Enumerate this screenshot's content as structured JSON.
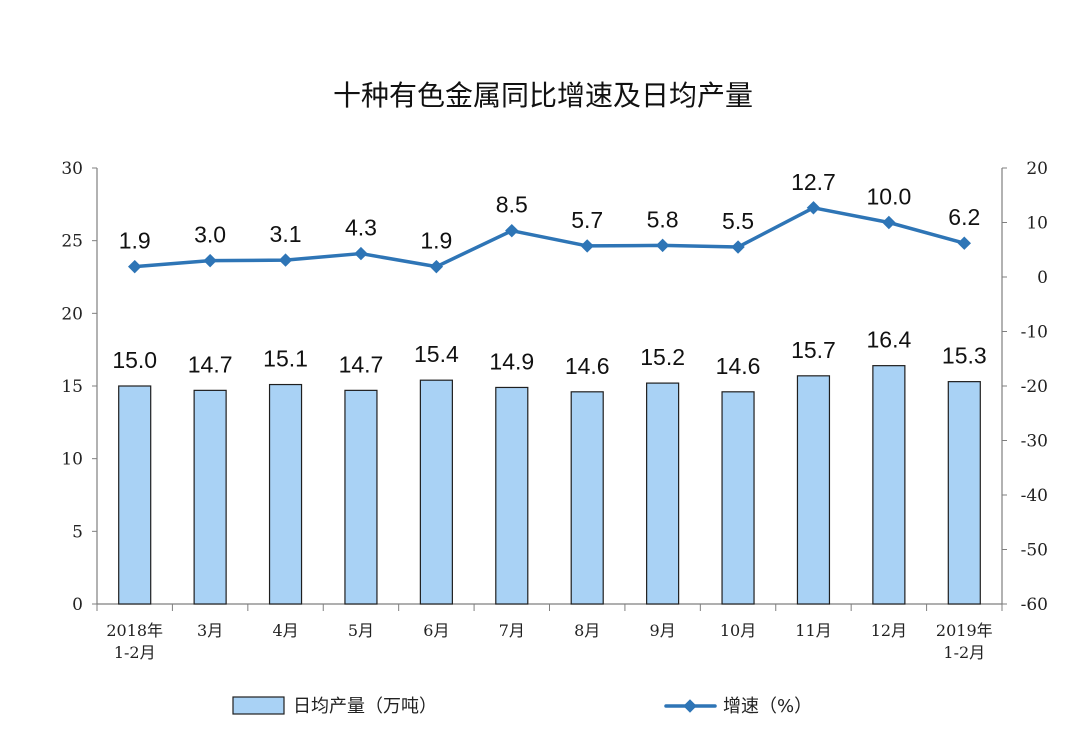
{
  "chart_data": {
    "type": "bar",
    "title": "十种有色金属同比增速及日均产量",
    "categories": [
      [
        "2018年",
        "1-2月"
      ],
      [
        "3月"
      ],
      [
        "4月"
      ],
      [
        "5月"
      ],
      [
        "6月"
      ],
      [
        "7月"
      ],
      [
        "8月"
      ],
      [
        "9月"
      ],
      [
        "10月"
      ],
      [
        "11月"
      ],
      [
        "12月"
      ],
      [
        "2019年",
        "1-2月"
      ]
    ],
    "series": [
      {
        "name": "日均产量（万吨）",
        "type": "bar",
        "axis": "left",
        "values": [
          15.0,
          14.7,
          15.1,
          14.7,
          15.4,
          14.9,
          14.6,
          15.2,
          14.6,
          15.7,
          16.4,
          15.3
        ],
        "labels": [
          "15.0",
          "14.7",
          "15.1",
          "14.7",
          "15.4",
          "14.9",
          "14.6",
          "15.2",
          "14.6",
          "15.7",
          "16.4",
          "15.3"
        ],
        "color": "#a9d2f5",
        "stroke": "#1f1f1f"
      },
      {
        "name": "增速（%）",
        "type": "line",
        "axis": "right",
        "values": [
          1.9,
          3.0,
          3.1,
          4.3,
          1.9,
          8.5,
          5.7,
          5.8,
          5.5,
          12.7,
          10.0,
          6.2
        ],
        "labels": [
          "1.9",
          "3.0",
          "3.1",
          "4.3",
          "1.9",
          "8.5",
          "5.7",
          "5.8",
          "5.5",
          "12.7",
          "10.0",
          "6.2"
        ],
        "color": "#2e75b6"
      }
    ],
    "y_left": {
      "ylim": [
        0,
        30
      ],
      "ticks": [
        "0",
        "5",
        "10",
        "15",
        "20",
        "25",
        "30"
      ]
    },
    "y_right": {
      "ylim": [
        -60,
        20
      ],
      "ticks": [
        "-60",
        "-50",
        "-40",
        "-30",
        "-20",
        "-10",
        "0",
        "10",
        "20"
      ]
    },
    "grid": false,
    "legend": "bottom"
  }
}
